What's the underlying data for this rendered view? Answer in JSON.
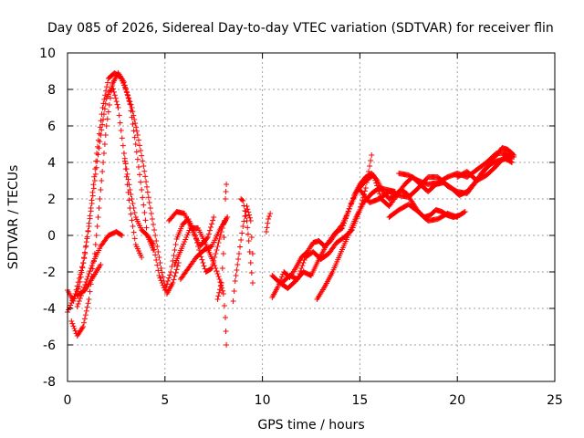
{
  "chart_data": {
    "type": "scatter",
    "title": "Day 085 of 2026, Sidereal Day-to-day VTEC variation (SDTVAR) for receiver flin",
    "xlabel": "GPS time / hours",
    "ylabel": "SDTVAR / TECUs",
    "xlim": [
      0,
      25
    ],
    "ylim": [
      -8,
      10
    ],
    "xticks": [
      "0",
      "5",
      "10",
      "15",
      "20",
      "25"
    ],
    "yticks": [
      "-8",
      "-6",
      "-4",
      "-2",
      "0",
      "2",
      "4",
      "6",
      "8",
      "10"
    ],
    "grid": true,
    "marker": "+",
    "color": "#ff0000",
    "tracks": [
      [
        [
          0.0,
          -3.0
        ],
        [
          0.3,
          -3.6
        ],
        [
          0.6,
          -2.8
        ],
        [
          0.9,
          -1.0
        ],
        [
          1.2,
          1.5
        ],
        [
          1.5,
          4.5
        ],
        [
          1.8,
          7.0
        ],
        [
          2.1,
          8.6
        ],
        [
          2.4,
          8.9
        ],
        [
          2.7,
          8.7
        ],
        [
          3.0,
          8.0
        ],
        [
          3.3,
          7.0
        ],
        [
          3.6,
          5.5
        ],
        [
          3.9,
          3.8
        ],
        [
          4.2,
          1.8
        ],
        [
          4.5,
          0.0
        ],
        [
          4.8,
          -1.8
        ],
        [
          5.1,
          -3.2
        ],
        [
          5.4,
          -2.6
        ],
        [
          5.7,
          -1.5
        ]
      ],
      [
        [
          0.2,
          -4.7
        ],
        [
          0.5,
          -5.5
        ],
        [
          0.8,
          -5.0
        ],
        [
          1.1,
          -3.5
        ],
        [
          1.4,
          -1.0
        ],
        [
          1.7,
          2.5
        ],
        [
          2.0,
          6.0
        ],
        [
          2.3,
          8.3
        ],
        [
          2.6,
          8.9
        ],
        [
          2.9,
          8.4
        ],
        [
          3.2,
          7.2
        ],
        [
          3.5,
          5.0
        ],
        [
          3.8,
          2.5
        ],
        [
          4.1,
          0.0
        ],
        [
          4.4,
          -0.8
        ]
      ],
      [
        [
          0.0,
          -4.2
        ],
        [
          0.4,
          -3.2
        ],
        [
          0.8,
          -1.5
        ],
        [
          1.1,
          0.5
        ],
        [
          1.4,
          3.0
        ],
        [
          1.7,
          5.5
        ],
        [
          2.0,
          7.5
        ],
        [
          2.3,
          8.2
        ],
        [
          2.6,
          7.0
        ],
        [
          2.9,
          4.5
        ],
        [
          3.2,
          1.5
        ],
        [
          3.5,
          -0.5
        ],
        [
          3.8,
          -1.2
        ]
      ],
      [
        [
          0.5,
          -3.9
        ],
        [
          0.9,
          -2.7
        ],
        [
          1.3,
          -1.5
        ],
        [
          1.7,
          -0.6
        ],
        [
          2.1,
          0.0
        ],
        [
          2.5,
          0.2
        ],
        [
          2.8,
          0.0
        ]
      ],
      [
        [
          0.5,
          -3.3
        ],
        [
          0.9,
          -3.0
        ],
        [
          1.3,
          -2.3
        ],
        [
          1.7,
          -1.6
        ]
      ],
      [
        [
          2.9,
          4.5
        ],
        [
          3.2,
          2.5
        ],
        [
          3.5,
          1.0
        ],
        [
          3.8,
          0.3
        ],
        [
          4.1,
          0.0
        ],
        [
          4.4,
          -0.5
        ],
        [
          4.7,
          -2.2
        ],
        [
          5.0,
          -3.0
        ],
        [
          5.3,
          -2.0
        ],
        [
          5.6,
          -0.2
        ],
        [
          5.9,
          0.6
        ],
        [
          6.2,
          0.9
        ],
        [
          6.5,
          0.2
        ],
        [
          6.8,
          -1.0
        ],
        [
          7.1,
          -2.0
        ],
        [
          7.4,
          -1.8
        ],
        [
          7.7,
          -0.6
        ],
        [
          8.0,
          0.6
        ],
        [
          8.2,
          1.0
        ]
      ],
      [
        [
          5.8,
          -2.4
        ],
        [
          6.2,
          -1.8
        ],
        [
          6.6,
          -1.2
        ],
        [
          7.0,
          -0.8
        ],
        [
          7.4,
          -0.6
        ],
        [
          7.8,
          0.3
        ],
        [
          8.2,
          1.0
        ]
      ],
      [
        [
          5.2,
          0.8
        ],
        [
          5.6,
          1.3
        ],
        [
          6.0,
          1.2
        ],
        [
          6.4,
          0.3
        ],
        [
          6.8,
          -0.6
        ],
        [
          7.2,
          -0.1
        ],
        [
          7.5,
          1.0
        ]
      ],
      [
        [
          5.5,
          -1.6
        ],
        [
          5.9,
          -0.6
        ],
        [
          6.3,
          0.4
        ],
        [
          6.7,
          0.4
        ],
        [
          7.1,
          -0.5
        ],
        [
          7.5,
          -1.5
        ],
        [
          7.8,
          -2.4
        ],
        [
          8.0,
          -3.2
        ],
        [
          8.1,
          -4.5
        ],
        [
          8.15,
          -6.0
        ]
      ],
      [
        [
          7.7,
          -3.5
        ],
        [
          7.9,
          -2.6
        ],
        [
          8.0,
          -1.0
        ],
        [
          8.05,
          0.8
        ],
        [
          8.1,
          2.0
        ],
        [
          8.15,
          2.8
        ]
      ],
      [
        [
          8.5,
          -3.6
        ],
        [
          8.6,
          -2.5
        ],
        [
          8.8,
          -1.0
        ],
        [
          9.0,
          0.5
        ],
        [
          9.2,
          1.6
        ],
        [
          9.4,
          0.8
        ],
        [
          9.5,
          -1.0
        ]
      ],
      [
        [
          9.5,
          -2.6
        ],
        [
          9.4,
          -1.5
        ],
        [
          9.3,
          -0.3
        ],
        [
          9.2,
          0.8
        ],
        [
          9.0,
          1.9
        ],
        [
          8.9,
          2.0
        ]
      ],
      [
        [
          10.2,
          0.2
        ],
        [
          10.3,
          0.9
        ],
        [
          10.4,
          1.2
        ]
      ],
      [
        [
          10.5,
          -3.4
        ],
        [
          10.8,
          -2.8
        ],
        [
          11.1,
          -2.0
        ],
        [
          11.4,
          -2.3
        ],
        [
          11.7,
          -1.8
        ],
        [
          12.0,
          -1.2
        ],
        [
          12.3,
          -0.9
        ],
        [
          12.6,
          -0.4
        ],
        [
          12.9,
          -0.3
        ],
        [
          13.2,
          -0.6
        ],
        [
          13.5,
          -0.3
        ],
        [
          13.8,
          0.2
        ],
        [
          14.1,
          0.6
        ],
        [
          14.4,
          1.3
        ],
        [
          14.7,
          2.2
        ],
        [
          15.0,
          2.8
        ],
        [
          15.3,
          3.2
        ],
        [
          15.6,
          3.4
        ],
        [
          15.9,
          3.0
        ],
        [
          16.2,
          2.4
        ],
        [
          16.5,
          2.0
        ],
        [
          16.8,
          2.2
        ],
        [
          17.1,
          2.5
        ],
        [
          17.4,
          2.3
        ],
        [
          17.7,
          1.8
        ],
        [
          18.0,
          1.3
        ],
        [
          18.3,
          1.0
        ],
        [
          18.6,
          1.1
        ],
        [
          18.9,
          1.4
        ],
        [
          19.2,
          1.3
        ],
        [
          19.5,
          1.1
        ],
        [
          19.8,
          1.0
        ],
        [
          20.1,
          1.1
        ],
        [
          20.4,
          1.3
        ]
      ],
      [
        [
          10.5,
          -2.2
        ],
        [
          10.9,
          -2.6
        ],
        [
          11.3,
          -2.9
        ],
        [
          11.7,
          -2.5
        ],
        [
          12.1,
          -2.0
        ],
        [
          12.5,
          -2.2
        ],
        [
          12.9,
          -1.3
        ],
        [
          13.3,
          -0.5
        ],
        [
          13.7,
          0.1
        ],
        [
          14.1,
          0.4
        ],
        [
          14.5,
          1.6
        ],
        [
          14.9,
          2.5
        ],
        [
          15.3,
          3.0
        ],
        [
          15.7,
          3.3
        ],
        [
          16.1,
          2.0
        ],
        [
          16.5,
          1.6
        ],
        [
          16.9,
          2.2
        ],
        [
          17.3,
          2.8
        ],
        [
          17.7,
          3.2
        ],
        [
          18.1,
          2.8
        ],
        [
          18.5,
          2.4
        ],
        [
          18.9,
          2.8
        ],
        [
          19.3,
          2.9
        ],
        [
          19.7,
          2.6
        ],
        [
          20.1,
          2.2
        ],
        [
          20.5,
          2.4
        ],
        [
          20.9,
          2.9
        ],
        [
          21.3,
          3.5
        ],
        [
          21.7,
          3.9
        ],
        [
          22.1,
          4.1
        ],
        [
          22.5,
          4.2
        ],
        [
          22.8,
          4.0
        ]
      ],
      [
        [
          11.0,
          -2.6
        ],
        [
          11.4,
          -2.2
        ],
        [
          11.8,
          -2.4
        ],
        [
          12.2,
          -1.2
        ],
        [
          12.6,
          -0.9
        ],
        [
          13.0,
          -1.3
        ],
        [
          13.4,
          -1.0
        ],
        [
          13.8,
          -0.4
        ],
        [
          14.2,
          -0.1
        ],
        [
          14.6,
          0.3
        ],
        [
          15.0,
          1.4
        ],
        [
          15.3,
          2.6
        ],
        [
          15.5,
          3.8
        ],
        [
          15.6,
          4.4
        ]
      ],
      [
        [
          12.8,
          -3.5
        ],
        [
          13.2,
          -2.8
        ],
        [
          13.6,
          -2.0
        ],
        [
          14.0,
          -1.0
        ],
        [
          14.4,
          0.0
        ],
        [
          14.8,
          1.0
        ],
        [
          15.2,
          1.8
        ],
        [
          15.6,
          2.3
        ],
        [
          16.0,
          2.6
        ],
        [
          16.4,
          2.5
        ],
        [
          16.8,
          2.4
        ]
      ],
      [
        [
          15.0,
          2.5
        ],
        [
          15.5,
          1.8
        ],
        [
          16.0,
          2.0
        ],
        [
          16.5,
          2.4
        ],
        [
          17.0,
          2.2
        ],
        [
          17.5,
          2.1
        ],
        [
          18.0,
          2.6
        ],
        [
          18.5,
          3.2
        ],
        [
          19.0,
          3.2
        ],
        [
          19.5,
          2.7
        ],
        [
          20.0,
          2.4
        ],
        [
          20.5,
          2.3
        ],
        [
          21.0,
          3.0
        ],
        [
          21.5,
          3.7
        ],
        [
          22.0,
          4.4
        ],
        [
          22.3,
          4.8
        ],
        [
          22.6,
          4.7
        ],
        [
          22.9,
          4.4
        ]
      ],
      [
        [
          17.0,
          3.4
        ],
        [
          17.5,
          3.3
        ],
        [
          18.0,
          3.0
        ],
        [
          18.5,
          2.8
        ],
        [
          19.0,
          2.9
        ],
        [
          19.5,
          3.2
        ],
        [
          20.0,
          3.4
        ],
        [
          20.5,
          3.2
        ],
        [
          21.0,
          3.6
        ],
        [
          21.5,
          4.0
        ],
        [
          22.0,
          4.5
        ],
        [
          22.4,
          4.5
        ],
        [
          22.8,
          4.3
        ]
      ],
      [
        [
          16.5,
          1.0
        ],
        [
          17.0,
          1.4
        ],
        [
          17.5,
          1.7
        ],
        [
          18.0,
          1.3
        ],
        [
          18.5,
          0.8
        ],
        [
          19.0,
          0.9
        ],
        [
          19.5,
          1.2
        ],
        [
          20.0,
          1.0
        ]
      ],
      [
        [
          20.0,
          3.2
        ],
        [
          20.5,
          3.5
        ],
        [
          21.0,
          3.0
        ],
        [
          21.5,
          3.3
        ],
        [
          22.0,
          3.8
        ],
        [
          22.5,
          4.4
        ],
        [
          22.9,
          4.3
        ]
      ]
    ]
  }
}
